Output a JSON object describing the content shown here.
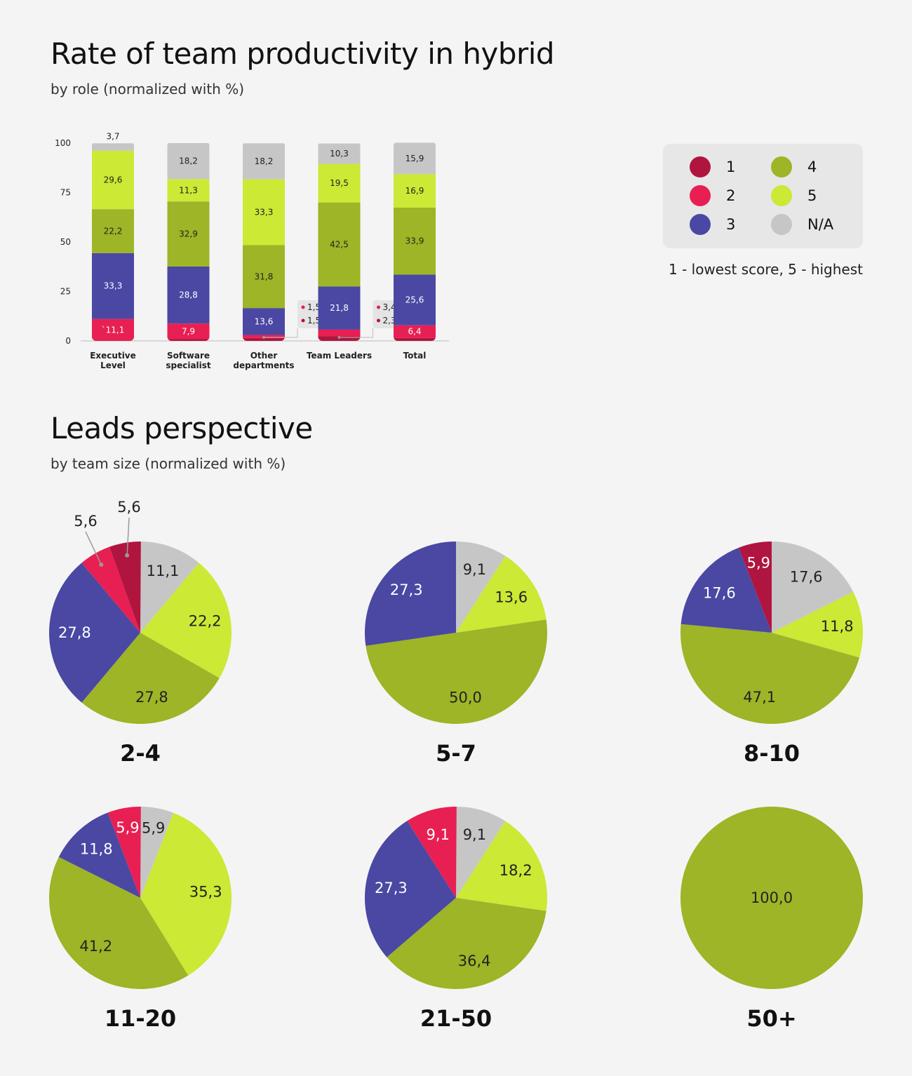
{
  "page": {
    "title1": "Rate of team productivity in hybrid",
    "subtitle1": "by role (normalized with %)",
    "title2": "Leads perspective",
    "subtitle2": "by team size (normalized with %)"
  },
  "legend": {
    "items": [
      {
        "label": "1",
        "color": "#b0153f"
      },
      {
        "label": "2",
        "color": "#e81f52"
      },
      {
        "label": "3",
        "color": "#4a48a3"
      },
      {
        "label": "4",
        "color": "#9db526"
      },
      {
        "label": "5",
        "color": "#cbe935"
      },
      {
        "label": "N/A",
        "color": "#c6c6c6"
      }
    ],
    "note": "1 - lowest score, 5 - highest"
  },
  "chart_data": [
    {
      "type": "bar",
      "stacked": true,
      "title": "Rate of team productivity in hybrid",
      "subtitle": "by role (normalized with %)",
      "ylim": [
        0,
        100
      ],
      "yticks": [
        0,
        25,
        50,
        75,
        100
      ],
      "categories": [
        "Executive Level",
        "Software specialist",
        "Other departments",
        "Team Leaders",
        "Total"
      ],
      "series": [
        {
          "name": "1",
          "color": "#b0153f",
          "values": [
            0,
            0.9,
            1.5,
            2.3,
            1.5
          ],
          "labels": [
            "",
            "",
            "1,5",
            "2,3",
            ""
          ]
        },
        {
          "name": "2",
          "color": "#e81f52",
          "values": [
            11.1,
            7.9,
            1.5,
            3.4,
            6.4
          ],
          "labels": [
            "`11,1",
            "7,9",
            "1,5",
            "3,4",
            "6,4"
          ]
        },
        {
          "name": "3",
          "color": "#4a48a3",
          "values": [
            33.3,
            28.8,
            13.6,
            21.8,
            25.6
          ],
          "labels": [
            "33,3",
            "28,8",
            "13,6",
            "21,8",
            "25,6"
          ]
        },
        {
          "name": "4",
          "color": "#9db526",
          "values": [
            22.2,
            32.9,
            31.8,
            42.5,
            33.9
          ],
          "labels": [
            "22,2",
            "32,9",
            "31,8",
            "42,5",
            "33,9"
          ]
        },
        {
          "name": "5",
          "color": "#cbe935",
          "values": [
            29.6,
            11.3,
            33.3,
            19.5,
            16.9
          ],
          "labels": [
            "29,6",
            "11,3",
            "33,3",
            "19,5",
            "16,9"
          ]
        },
        {
          "name": "N/A",
          "color": "#c6c6c6",
          "values": [
            3.7,
            18.2,
            18.2,
            10.3,
            15.9
          ],
          "labels": [
            "3,7",
            "18,2",
            "18,2",
            "10,3",
            "15,9"
          ]
        }
      ]
    },
    {
      "type": "pie",
      "title": "Leads perspective",
      "subtitle": "by team size (normalized with %)",
      "slice_order": [
        "N/A",
        "5",
        "4",
        "3",
        "2",
        "1"
      ],
      "colors": {
        "N/A": "#c6c6c6",
        "5": "#cbe935",
        "4": "#9db526",
        "3": "#4a48a3",
        "2": "#e81f52",
        "1": "#b0153f"
      },
      "pies": [
        {
          "label": "2-4",
          "slices": [
            {
              "series": "N/A",
              "value": 11.1,
              "label": "11,1"
            },
            {
              "series": "5",
              "value": 22.2,
              "label": "22,2"
            },
            {
              "series": "4",
              "value": 27.8,
              "label": "27,8"
            },
            {
              "series": "3",
              "value": 27.8,
              "label": "27,8"
            },
            {
              "series": "2",
              "value": 5.6,
              "label": "5,6"
            },
            {
              "series": "1",
              "value": 5.6,
              "label": "5,6"
            }
          ]
        },
        {
          "label": "5-7",
          "slices": [
            {
              "series": "N/A",
              "value": 9.1,
              "label": "9,1"
            },
            {
              "series": "5",
              "value": 13.6,
              "label": "13,6"
            },
            {
              "series": "4",
              "value": 50.0,
              "label": "50,0"
            },
            {
              "series": "3",
              "value": 27.3,
              "label": "27,3"
            }
          ]
        },
        {
          "label": "8-10",
          "slices": [
            {
              "series": "N/A",
              "value": 17.6,
              "label": "17,6"
            },
            {
              "series": "5",
              "value": 11.8,
              "label": "11,8"
            },
            {
              "series": "4",
              "value": 47.1,
              "label": "47,1"
            },
            {
              "series": "3",
              "value": 17.6,
              "label": "17,6"
            },
            {
              "series": "1",
              "value": 5.9,
              "label": "5,9"
            }
          ]
        },
        {
          "label": "11-20",
          "slices": [
            {
              "series": "N/A",
              "value": 5.9,
              "label": "5,9"
            },
            {
              "series": "5",
              "value": 35.3,
              "label": "35,3"
            },
            {
              "series": "4",
              "value": 41.2,
              "label": "41,2"
            },
            {
              "series": "3",
              "value": 11.8,
              "label": "11,8"
            },
            {
              "series": "2",
              "value": 5.9,
              "label": "5,9"
            }
          ]
        },
        {
          "label": "21-50",
          "slices": [
            {
              "series": "N/A",
              "value": 9.1,
              "label": "9,1"
            },
            {
              "series": "5",
              "value": 18.2,
              "label": "18,2"
            },
            {
              "series": "4",
              "value": 36.4,
              "label": "36,4"
            },
            {
              "series": "3",
              "value": 27.3,
              "label": "27,3"
            },
            {
              "series": "2",
              "value": 9.1,
              "label": "9,1"
            }
          ]
        },
        {
          "label": "50+",
          "slices": [
            {
              "series": "4",
              "value": 100.0,
              "label": "100,0"
            }
          ]
        }
      ]
    }
  ]
}
